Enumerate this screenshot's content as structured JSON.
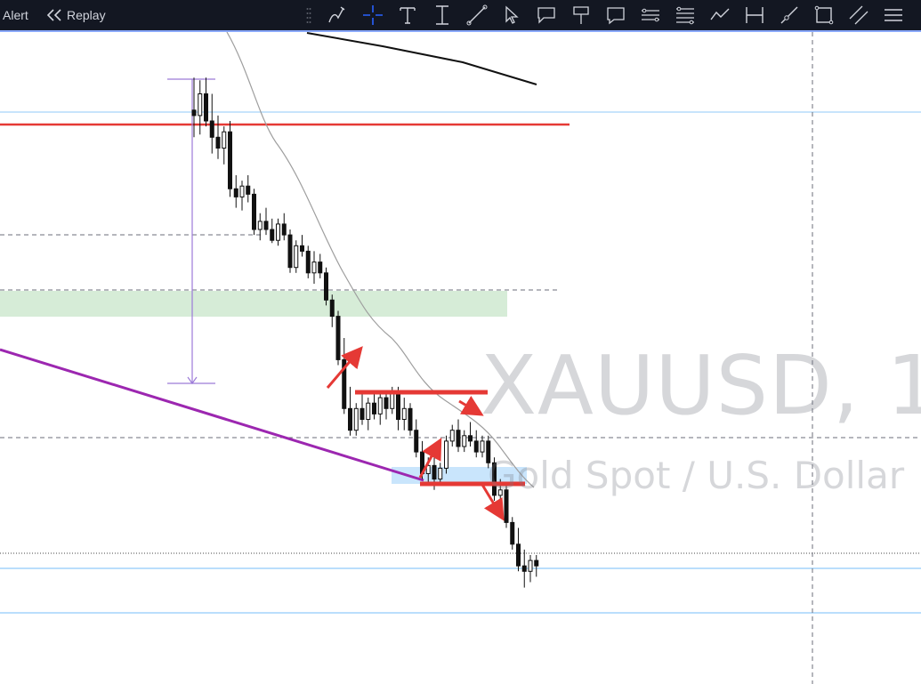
{
  "toolbar": {
    "alert_label": "Alert",
    "replay_label": "Replay",
    "tools": [
      "brush-icon",
      "crosshair-icon",
      "text-icon",
      "text-cursor-icon",
      "trend-line-icon",
      "cursor-arrow-icon",
      "callout-icon",
      "flag-note-icon",
      "comment-icon",
      "horizontal-lines-icon",
      "fib-levels-icon",
      "path-icon",
      "date-range-icon",
      "ray-icon",
      "rectangle-icon",
      "parallel-channel-icon",
      "more-tools-icon"
    ]
  },
  "watermark": {
    "symbol": "XAUUSD, 1",
    "description": "Gold Spot / U.S. Dollar"
  },
  "colors": {
    "toolbar_bg": "#131722",
    "horizontal_resistance": "#e53935",
    "trendline": "#9c27b0",
    "moving_average_slow": "#000000",
    "moving_average_fast": "#9e9e9e",
    "arrows": "#e53935",
    "demand_zone": "#c8e6c9",
    "blue_zone": "#bbdefb",
    "level_lines": "#90caf9"
  },
  "chart_data": {
    "type": "candlestick",
    "symbol": "XAUUSD, 1",
    "candles": [
      {
        "o": 84,
        "h": 96,
        "l": 74,
        "c": 82
      },
      {
        "o": 82,
        "h": 95,
        "l": 75,
        "c": 90
      },
      {
        "o": 90,
        "h": 96,
        "l": 78,
        "c": 80
      },
      {
        "o": 80,
        "h": 90,
        "l": 68,
        "c": 74
      },
      {
        "o": 74,
        "h": 82,
        "l": 66,
        "c": 70
      },
      {
        "o": 70,
        "h": 78,
        "l": 64,
        "c": 76
      },
      {
        "o": 76,
        "h": 80,
        "l": 52,
        "c": 55
      },
      {
        "o": 55,
        "h": 60,
        "l": 48,
        "c": 52
      },
      {
        "o": 52,
        "h": 58,
        "l": 47,
        "c": 56
      },
      {
        "o": 56,
        "h": 60,
        "l": 50,
        "c": 53
      },
      {
        "o": 53,
        "h": 55,
        "l": 38,
        "c": 40
      },
      {
        "o": 40,
        "h": 46,
        "l": 36,
        "c": 43
      },
      {
        "o": 43,
        "h": 48,
        "l": 38,
        "c": 40
      },
      {
        "o": 40,
        "h": 44,
        "l": 35,
        "c": 36
      },
      {
        "o": 36,
        "h": 44,
        "l": 34,
        "c": 42
      },
      {
        "o": 42,
        "h": 46,
        "l": 36,
        "c": 38
      },
      {
        "o": 38,
        "h": 40,
        "l": 24,
        "c": 26
      },
      {
        "o": 26,
        "h": 36,
        "l": 24,
        "c": 34
      },
      {
        "o": 34,
        "h": 38,
        "l": 30,
        "c": 32
      },
      {
        "o": 32,
        "h": 34,
        "l": 22,
        "c": 24
      },
      {
        "o": 24,
        "h": 32,
        "l": 20,
        "c": 28
      },
      {
        "o": 28,
        "h": 31,
        "l": 22,
        "c": 24
      },
      {
        "o": 24,
        "h": 26,
        "l": 12,
        "c": 14
      },
      {
        "o": 14,
        "h": 16,
        "l": 4,
        "c": 8
      },
      {
        "o": 8,
        "h": 10,
        "l": -10,
        "c": -8
      },
      {
        "o": -8,
        "h": 0,
        "l": -28,
        "c": -26
      },
      {
        "o": -26,
        "h": -18,
        "l": -36,
        "c": -34
      },
      {
        "o": -34,
        "h": -24,
        "l": -36,
        "c": -26
      },
      {
        "o": -26,
        "h": -20,
        "l": -32,
        "c": -30
      },
      {
        "o": -30,
        "h": -22,
        "l": -34,
        "c": -24
      },
      {
        "o": -24,
        "h": -20,
        "l": -30,
        "c": -28
      },
      {
        "o": -28,
        "h": -20,
        "l": -32,
        "c": -22
      },
      {
        "o": -22,
        "h": -20,
        "l": -30,
        "c": -26
      },
      {
        "o": -26,
        "h": -18,
        "l": -28,
        "c": -20
      },
      {
        "o": -20,
        "h": -18,
        "l": -34,
        "c": -30
      },
      {
        "o": -30,
        "h": -22,
        "l": -34,
        "c": -26
      },
      {
        "o": -26,
        "h": -24,
        "l": -36,
        "c": -34
      },
      {
        "o": -34,
        "h": -30,
        "l": -44,
        "c": -42
      },
      {
        "o": -42,
        "h": -38,
        "l": -52,
        "c": -50
      },
      {
        "o": -50,
        "h": -44,
        "l": -54,
        "c": -47
      },
      {
        "o": -47,
        "h": -44,
        "l": -56,
        "c": -52
      },
      {
        "o": -52,
        "h": -46,
        "l": -54,
        "c": -48
      },
      {
        "o": -48,
        "h": -36,
        "l": -50,
        "c": -38
      },
      {
        "o": -38,
        "h": -32,
        "l": -40,
        "c": -34
      },
      {
        "o": -34,
        "h": -30,
        "l": -42,
        "c": -40
      },
      {
        "o": -40,
        "h": -34,
        "l": -42,
        "c": -36
      },
      {
        "o": -36,
        "h": -31,
        "l": -40,
        "c": -38
      },
      {
        "o": -38,
        "h": -34,
        "l": -44,
        "c": -42
      },
      {
        "o": -42,
        "h": -36,
        "l": -44,
        "c": -38
      },
      {
        "o": -38,
        "h": -36,
        "l": -48,
        "c": -46
      },
      {
        "o": -46,
        "h": -44,
        "l": -60,
        "c": -58
      },
      {
        "o": -58,
        "h": -52,
        "l": -64,
        "c": -56
      },
      {
        "o": -56,
        "h": -54,
        "l": -70,
        "c": -68
      },
      {
        "o": -68,
        "h": -66,
        "l": -78,
        "c": -76
      },
      {
        "o": -76,
        "h": -70,
        "l": -86,
        "c": -84
      },
      {
        "o": -84,
        "h": -78,
        "l": -92,
        "c": -86
      },
      {
        "o": -86,
        "h": -80,
        "l": -90,
        "c": -82
      },
      {
        "o": -82,
        "h": -80,
        "l": -88,
        "c": -84
      }
    ]
  }
}
